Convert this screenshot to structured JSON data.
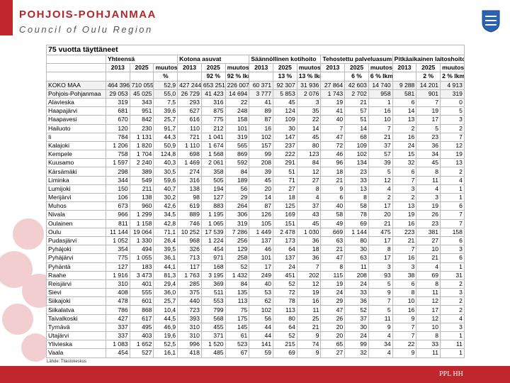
{
  "header": {
    "title": "POHJOIS-POHJANMAA",
    "subtitle": "Council of Oulu Region"
  },
  "table": {
    "title": "75 vuotta täyttäneet",
    "groups": [
      {
        "name": "Yhteensä",
        "columns": [
          "2013",
          "2025",
          "muutos"
        ],
        "units": [
          null,
          null,
          "%"
        ]
      },
      {
        "name": "Kotona asuvat",
        "columns": [
          "2013",
          "2025",
          "muutos"
        ],
        "units": [
          null,
          "92 %",
          "92 % lkm"
        ]
      },
      {
        "name": "Säännöllinen kotihoito",
        "columns": [
          "2013",
          "2025",
          "muutos"
        ],
        "units": [
          null,
          "13 %",
          "13 % lkm"
        ]
      },
      {
        "name": "Tehostettu palveluasuminen",
        "columns": [
          "2013",
          "2025",
          "muutos"
        ],
        "units": [
          null,
          "6 %",
          "6 % lkm"
        ]
      },
      {
        "name": "Pitkäaikainen laitoshoito",
        "columns": [
          "2013",
          "2025",
          "muutos"
        ],
        "units": [
          null,
          "2 %",
          "2 % lkm"
        ]
      }
    ],
    "rows": [
      [
        "KOKO MAA",
        "464 396",
        "710 055",
        "52,9",
        "427 244",
        "653 251",
        "226 007",
        "60 371",
        "92 307",
        "31 936",
        "27 864",
        "42 603",
        "14 740",
        "9 288",
        "14 201",
        "4 913"
      ],
      [
        "Pohjois-Pohjanmaa",
        "29 053",
        "45 025",
        "55,0",
        "26 729",
        "41 423",
        "14 694",
        "3 777",
        "5 853",
        "2 076",
        "1 743",
        "2 702",
        "958",
        "581",
        "901",
        "319"
      ],
      [
        "Alavieska",
        "319",
        "343",
        "7,5",
        "293",
        "316",
        "22",
        "41",
        "45",
        "3",
        "19",
        "21",
        "1",
        "6",
        "7",
        "0"
      ],
      [
        "Haapajärvi",
        "681",
        "951",
        "39,6",
        "627",
        "875",
        "248",
        "89",
        "124",
        "35",
        "41",
        "57",
        "16",
        "14",
        "19",
        "5"
      ],
      [
        "Haapavesi",
        "670",
        "842",
        "25,7",
        "616",
        "775",
        "158",
        "87",
        "109",
        "22",
        "40",
        "51",
        "10",
        "13",
        "17",
        "3"
      ],
      [
        "Hailuoto",
        "120",
        "230",
        "91,7",
        "110",
        "212",
        "101",
        "16",
        "30",
        "14",
        "7",
        "14",
        "7",
        "2",
        "5",
        "2"
      ],
      [
        "Ii",
        "784",
        "1 131",
        "44,3",
        "721",
        "1 041",
        "319",
        "102",
        "147",
        "45",
        "47",
        "68",
        "21",
        "16",
        "23",
        "7"
      ],
      [
        "Kalajoki",
        "1 206",
        "1 820",
        "50,9",
        "1 110",
        "1 674",
        "565",
        "157",
        "237",
        "80",
        "72",
        "109",
        "37",
        "24",
        "36",
        "12"
      ],
      [
        "Kempele",
        "758",
        "1 704",
        "124,8",
        "698",
        "1 568",
        "869",
        "99",
        "222",
        "123",
        "46",
        "102",
        "57",
        "15",
        "34",
        "19"
      ],
      [
        "Kuusamo",
        "1 597",
        "2 240",
        "40,3",
        "1 469",
        "2 061",
        "592",
        "208",
        "291",
        "84",
        "96",
        "134",
        "39",
        "32",
        "45",
        "13"
      ],
      [
        "Kärsämäki",
        "298",
        "389",
        "30,5",
        "274",
        "358",
        "84",
        "39",
        "51",
        "12",
        "18",
        "23",
        "5",
        "6",
        "8",
        "2"
      ],
      [
        "Liminka",
        "344",
        "549",
        "59,6",
        "316",
        "505",
        "189",
        "45",
        "71",
        "27",
        "21",
        "33",
        "12",
        "7",
        "11",
        "4"
      ],
      [
        "Lumijoki",
        "150",
        "211",
        "40,7",
        "138",
        "194",
        "56",
        "20",
        "27",
        "8",
        "9",
        "13",
        "4",
        "3",
        "4",
        "1"
      ],
      [
        "Merijärvi",
        "106",
        "138",
        "30,2",
        "98",
        "127",
        "29",
        "14",
        "18",
        "4",
        "6",
        "8",
        "2",
        "2",
        "3",
        "1"
      ],
      [
        "Muhos",
        "673",
        "960",
        "42,6",
        "619",
        "883",
        "264",
        "87",
        "125",
        "37",
        "40",
        "58",
        "17",
        "13",
        "19",
        "6"
      ],
      [
        "Nivala",
        "966",
        "1 299",
        "34,5",
        "889",
        "1 195",
        "306",
        "126",
        "169",
        "43",
        "58",
        "78",
        "20",
        "19",
        "26",
        "7"
      ],
      [
        "Oulainen",
        "811",
        "1 158",
        "42,8",
        "746",
        "1 065",
        "319",
        "105",
        "151",
        "45",
        "49",
        "69",
        "21",
        "16",
        "23",
        "7"
      ],
      [
        "Oulu",
        "11 144",
        "19 064",
        "71,1",
        "10 252",
        "17 539",
        "7 286",
        "1 449",
        "2 478",
        "1 030",
        "669",
        "1 144",
        "475",
        "223",
        "381",
        "158"
      ],
      [
        "Pudasjärvi",
        "1 052",
        "1 330",
        "26,4",
        "968",
        "1 224",
        "256",
        "137",
        "173",
        "36",
        "63",
        "80",
        "17",
        "21",
        "27",
        "6"
      ],
      [
        "Pyhäjoki",
        "354",
        "494",
        "39,5",
        "326",
        "454",
        "129",
        "46",
        "64",
        "18",
        "21",
        "30",
        "8",
        "7",
        "10",
        "3"
      ],
      [
        "Pyhäjärvi",
        "775",
        "1 055",
        "36,1",
        "713",
        "971",
        "258",
        "101",
        "137",
        "36",
        "47",
        "63",
        "17",
        "16",
        "21",
        "6"
      ],
      [
        "Pyhäntä",
        "127",
        "183",
        "44,1",
        "117",
        "168",
        "52",
        "17",
        "24",
        "7",
        "8",
        "11",
        "3",
        "3",
        "4",
        "1"
      ],
      [
        "Raahe",
        "1 916",
        "3 473",
        "81,3",
        "1 763",
        "3 195",
        "1 432",
        "249",
        "451",
        "202",
        "115",
        "208",
        "93",
        "38",
        "69",
        "31"
      ],
      [
        "Reisjärvi",
        "310",
        "401",
        "29,4",
        "285",
        "369",
        "84",
        "40",
        "52",
        "12",
        "19",
        "24",
        "5",
        "6",
        "8",
        "2"
      ],
      [
        "Sievi",
        "408",
        "555",
        "36,0",
        "375",
        "511",
        "135",
        "53",
        "72",
        "19",
        "24",
        "33",
        "9",
        "8",
        "11",
        "3"
      ],
      [
        "Siikajoki",
        "478",
        "601",
        "25,7",
        "440",
        "553",
        "113",
        "62",
        "78",
        "16",
        "29",
        "36",
        "7",
        "10",
        "12",
        "2"
      ],
      [
        "Siikalatva",
        "786",
        "868",
        "10,4",
        "723",
        "799",
        "75",
        "102",
        "113",
        "11",
        "47",
        "52",
        "5",
        "16",
        "17",
        "2"
      ],
      [
        "Taivalkoski",
        "427",
        "617",
        "44,5",
        "393",
        "568",
        "175",
        "56",
        "80",
        "25",
        "26",
        "37",
        "11",
        "9",
        "12",
        "4"
      ],
      [
        "Tyrnävä",
        "337",
        "495",
        "46,9",
        "310",
        "455",
        "145",
        "44",
        "64",
        "21",
        "20",
        "30",
        "9",
        "7",
        "10",
        "3"
      ],
      [
        "Utajärvi",
        "337",
        "403",
        "19,6",
        "310",
        "371",
        "61",
        "44",
        "52",
        "9",
        "20",
        "24",
        "4",
        "7",
        "8",
        "1"
      ],
      [
        "Ylivieska",
        "1 083",
        "1 652",
        "52,5",
        "996",
        "1 520",
        "523",
        "141",
        "215",
        "74",
        "65",
        "99",
        "34",
        "22",
        "33",
        "11"
      ],
      [
        "Vaala",
        "454",
        "527",
        "16,1",
        "418",
        "485",
        "67",
        "59",
        "69",
        "9",
        "27",
        "32",
        "4",
        "9",
        "11",
        "1"
      ]
    ],
    "source": "Lähde: Tilastokeskus"
  },
  "footer": {
    "text": "PPL HH"
  }
}
